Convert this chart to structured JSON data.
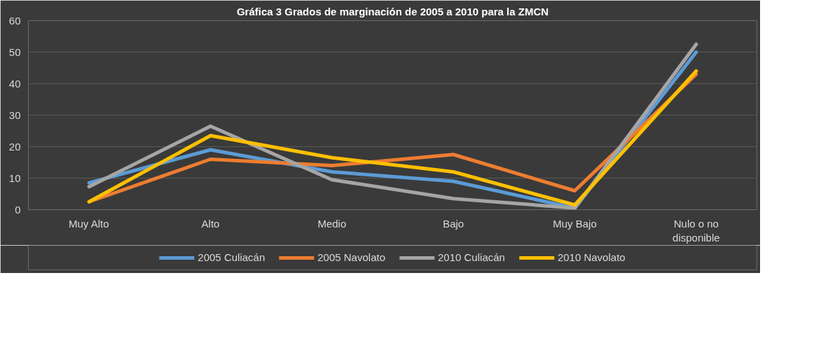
{
  "chart_data": {
    "type": "line",
    "title": "Gráfica 3 Grados de marginación de 2005 a 2010 para la ZMCN",
    "categories": [
      "Muy Alto",
      "Alto",
      "Medio",
      "Bajo",
      "Muy Bajo",
      "Nulo o no disponible"
    ],
    "series": [
      {
        "name": "2005 Culiacán",
        "color": "#5b9bd5",
        "values": [
          8.5,
          19,
          12,
          9,
          0.5,
          50
        ]
      },
      {
        "name": "2005 Navolato",
        "color": "#ed7d31",
        "values": [
          2.5,
          16,
          14,
          17.5,
          6,
          43
        ]
      },
      {
        "name": "2010 Culiacán",
        "color": "#a5a5a5",
        "values": [
          7.3,
          26.5,
          9.5,
          3.5,
          0.5,
          52.5
        ]
      },
      {
        "name": "2010 Navolato",
        "color": "#ffc000",
        "values": [
          2.5,
          23.5,
          16.5,
          12,
          1.5,
          44
        ]
      }
    ],
    "ylim": [
      0,
      60
    ],
    "yticks": [
      0,
      10,
      20,
      30,
      40,
      50,
      60
    ],
    "grid": "y",
    "legend": "bottom",
    "line_style": "solid"
  }
}
